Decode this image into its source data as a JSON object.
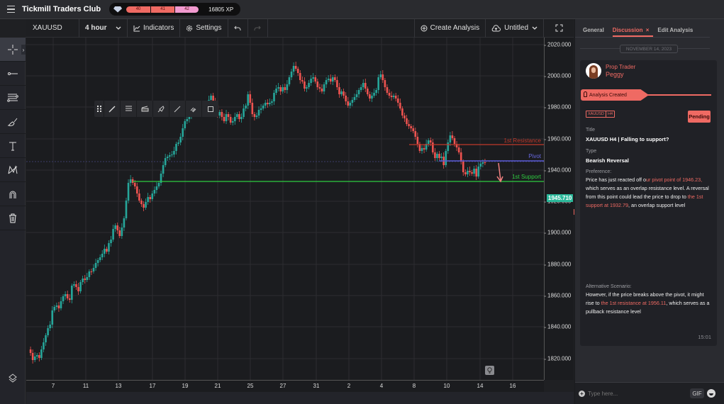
{
  "topbar": {
    "app_title": "Tickmill Traders Club",
    "levels": [
      "40",
      "41",
      "42"
    ],
    "xp": "16805 XP"
  },
  "toolbar": {
    "symbol": "XAUUSD",
    "interval": "4 hour",
    "indicators_label": "Indicators",
    "settings_label": "Settings",
    "create_analysis_label": "Create Analysis",
    "layout_name": "Untitled"
  },
  "left_tools": [
    {
      "name": "crosshair-icon",
      "active": true
    },
    {
      "name": "trend-line-icon"
    },
    {
      "name": "fib-retracement-icon"
    },
    {
      "name": "brush-icon"
    },
    {
      "name": "text-icon"
    },
    {
      "name": "pattern-icon"
    },
    {
      "name": "magnet-icon"
    },
    {
      "name": "trash-icon"
    }
  ],
  "floating_tools": [
    "drag-handle-icon",
    "pen-icon",
    "parallel-lines-icon",
    "fill-icon",
    "style-icon",
    "line-icon",
    "hide-icon",
    "box-icon"
  ],
  "chart": {
    "y_ticks": [
      "2020.000",
      "2000.000",
      "1980.000",
      "1960.000",
      "1940.000",
      "1920.000",
      "1900.000",
      "1880.000",
      "1860.000",
      "1840.000",
      "1820.000"
    ],
    "x_ticks": [
      "7",
      "11",
      "13",
      "17",
      "19",
      "21",
      "25",
      "27",
      "31",
      "2",
      "4",
      "8",
      "10",
      "14",
      "16"
    ],
    "current_price": "1945.710",
    "lines": {
      "resistance_label": "1st Resistance",
      "pivot_label": "Pivot",
      "support_label": "1st Support"
    },
    "colors": {
      "up": "#26a69a",
      "down": "#ef5350",
      "resistance": "#c0392b",
      "pivot": "#5b5bd6",
      "support": "#2ecc40"
    }
  },
  "panel": {
    "tabs": [
      "General",
      "Discussion",
      "Edit Analysis"
    ],
    "active_tab": "Discussion",
    "date": "NOVEMBER 14, 2023",
    "author_role": "Prop Trader",
    "author_name": "Peggy",
    "event": "Analysis Created",
    "tags": [
      "XAUUSD",
      "H4"
    ],
    "status": "Pending",
    "title_label": "Title",
    "title_value": "XAUUSD H4 | Falling to support?",
    "type_label": "Type",
    "type_value": "Bearish Reversal",
    "preference_label": "Preference:",
    "preference": {
      "p1": "Price has just reacted off o",
      "h1": "ur pivot point of 1946.23,",
      "p2": " which serves as an overlap resistance level. A reversal from this point could lead the price to drop to ",
      "h2": "the 1st support at 1932.79",
      "p3": ", an overlap support level"
    },
    "alt_label": "Alternative Scenario:",
    "alternative": {
      "p1": "However, if the price breaks above the pivot, it might rise to ",
      "h1": "the 1st resistance at 1956.11",
      "p2": ", which serves as a pullback resistance level"
    },
    "time": "15:01",
    "input_placeholder": "Type here...",
    "gif_label": "GIF"
  },
  "accent": "#ef6a63"
}
